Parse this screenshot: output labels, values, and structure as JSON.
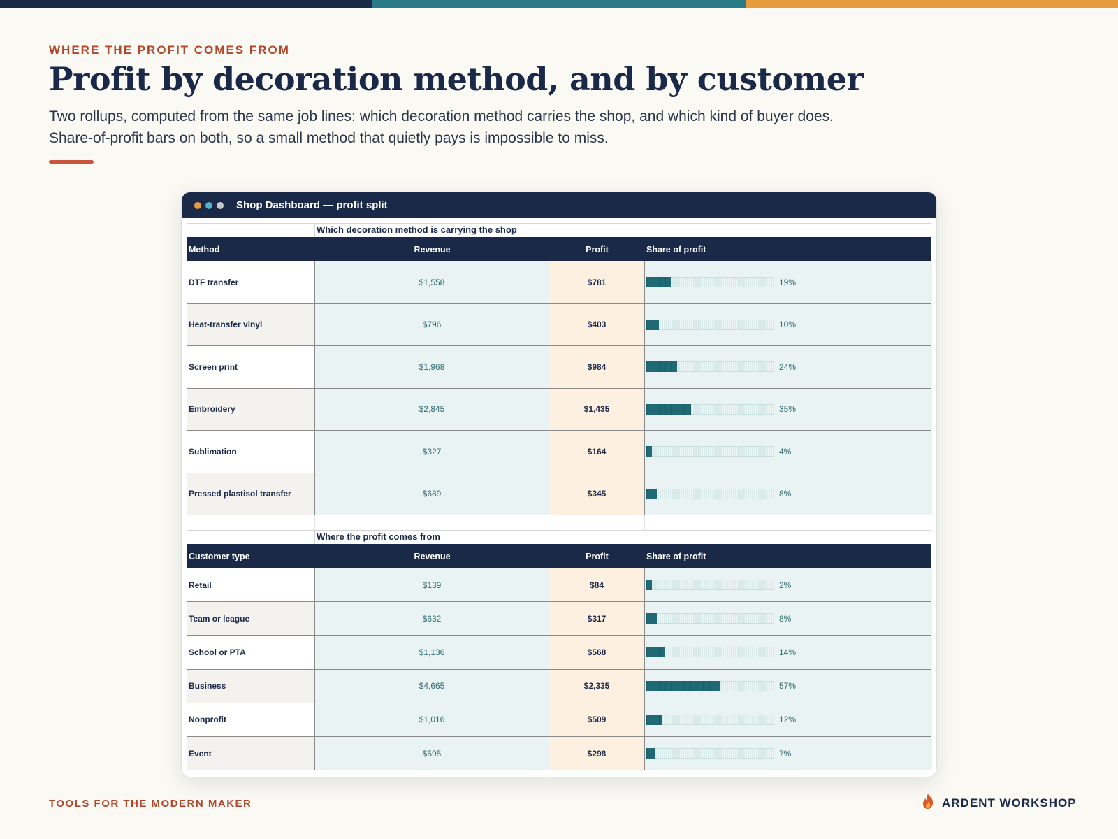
{
  "colors": {
    "navy": "#1b2948",
    "teal": "#2a7a88",
    "orange": "#e89b3c",
    "accent": "#c9553a",
    "bar": "#1f6a74"
  },
  "header": {
    "eyebrow": "WHERE THE PROFIT COMES FROM",
    "title": "Profit by decoration method, and by customer",
    "subtitle": "Two rollups, computed from the same job lines: which decoration method carries the shop, and which kind of buyer does. Share-of-profit bars on both, so a small method that quietly pays is impossible to miss."
  },
  "window": {
    "title": "Shop Dashboard — profit split",
    "dots": [
      "orange-dot-icon",
      "teal-dot-icon",
      "gray-dot-icon"
    ]
  },
  "methods": {
    "section_title": "Which decoration method is carrying the shop",
    "columns": [
      "Method",
      "Revenue",
      "Profit",
      "Share of profit"
    ],
    "rows": [
      {
        "name": "DTF transfer",
        "revenue": "$1,558",
        "profit": "$781",
        "share": 19,
        "share_label": "19%"
      },
      {
        "name": "Heat-transfer vinyl",
        "revenue": "$796",
        "profit": "$403",
        "share": 10,
        "share_label": "10%"
      },
      {
        "name": "Screen print",
        "revenue": "$1,968",
        "profit": "$984",
        "share": 24,
        "share_label": "24%"
      },
      {
        "name": "Embroidery",
        "revenue": "$2,845",
        "profit": "$1,435",
        "share": 35,
        "share_label": "35%"
      },
      {
        "name": "Sublimation",
        "revenue": "$327",
        "profit": "$164",
        "share": 4,
        "share_label": "4%"
      },
      {
        "name": "Pressed plastisol transfer",
        "revenue": "$689",
        "profit": "$345",
        "share": 8,
        "share_label": "8%"
      }
    ]
  },
  "customers": {
    "section_title": "Where the profit comes from",
    "columns": [
      "Customer type",
      "Revenue",
      "Profit",
      "Share of profit"
    ],
    "rows": [
      {
        "name": "Retail",
        "revenue": "$139",
        "profit": "$84",
        "share": 2,
        "share_label": "2%"
      },
      {
        "name": "Team or league",
        "revenue": "$632",
        "profit": "$317",
        "share": 8,
        "share_label": "8%"
      },
      {
        "name": "School or PTA",
        "revenue": "$1,136",
        "profit": "$568",
        "share": 14,
        "share_label": "14%"
      },
      {
        "name": "Business",
        "revenue": "$4,665",
        "profit": "$2,335",
        "share": 57,
        "share_label": "57%"
      },
      {
        "name": "Nonprofit",
        "revenue": "$1,016",
        "profit": "$509",
        "share": 12,
        "share_label": "12%"
      },
      {
        "name": "Event",
        "revenue": "$595",
        "profit": "$298",
        "share": 7,
        "share_label": "7%"
      }
    ]
  },
  "footer": {
    "tagline": "TOOLS FOR THE MODERN MAKER",
    "brand": "ARDENT WORKSHOP",
    "brand_icon": "flame-icon"
  }
}
